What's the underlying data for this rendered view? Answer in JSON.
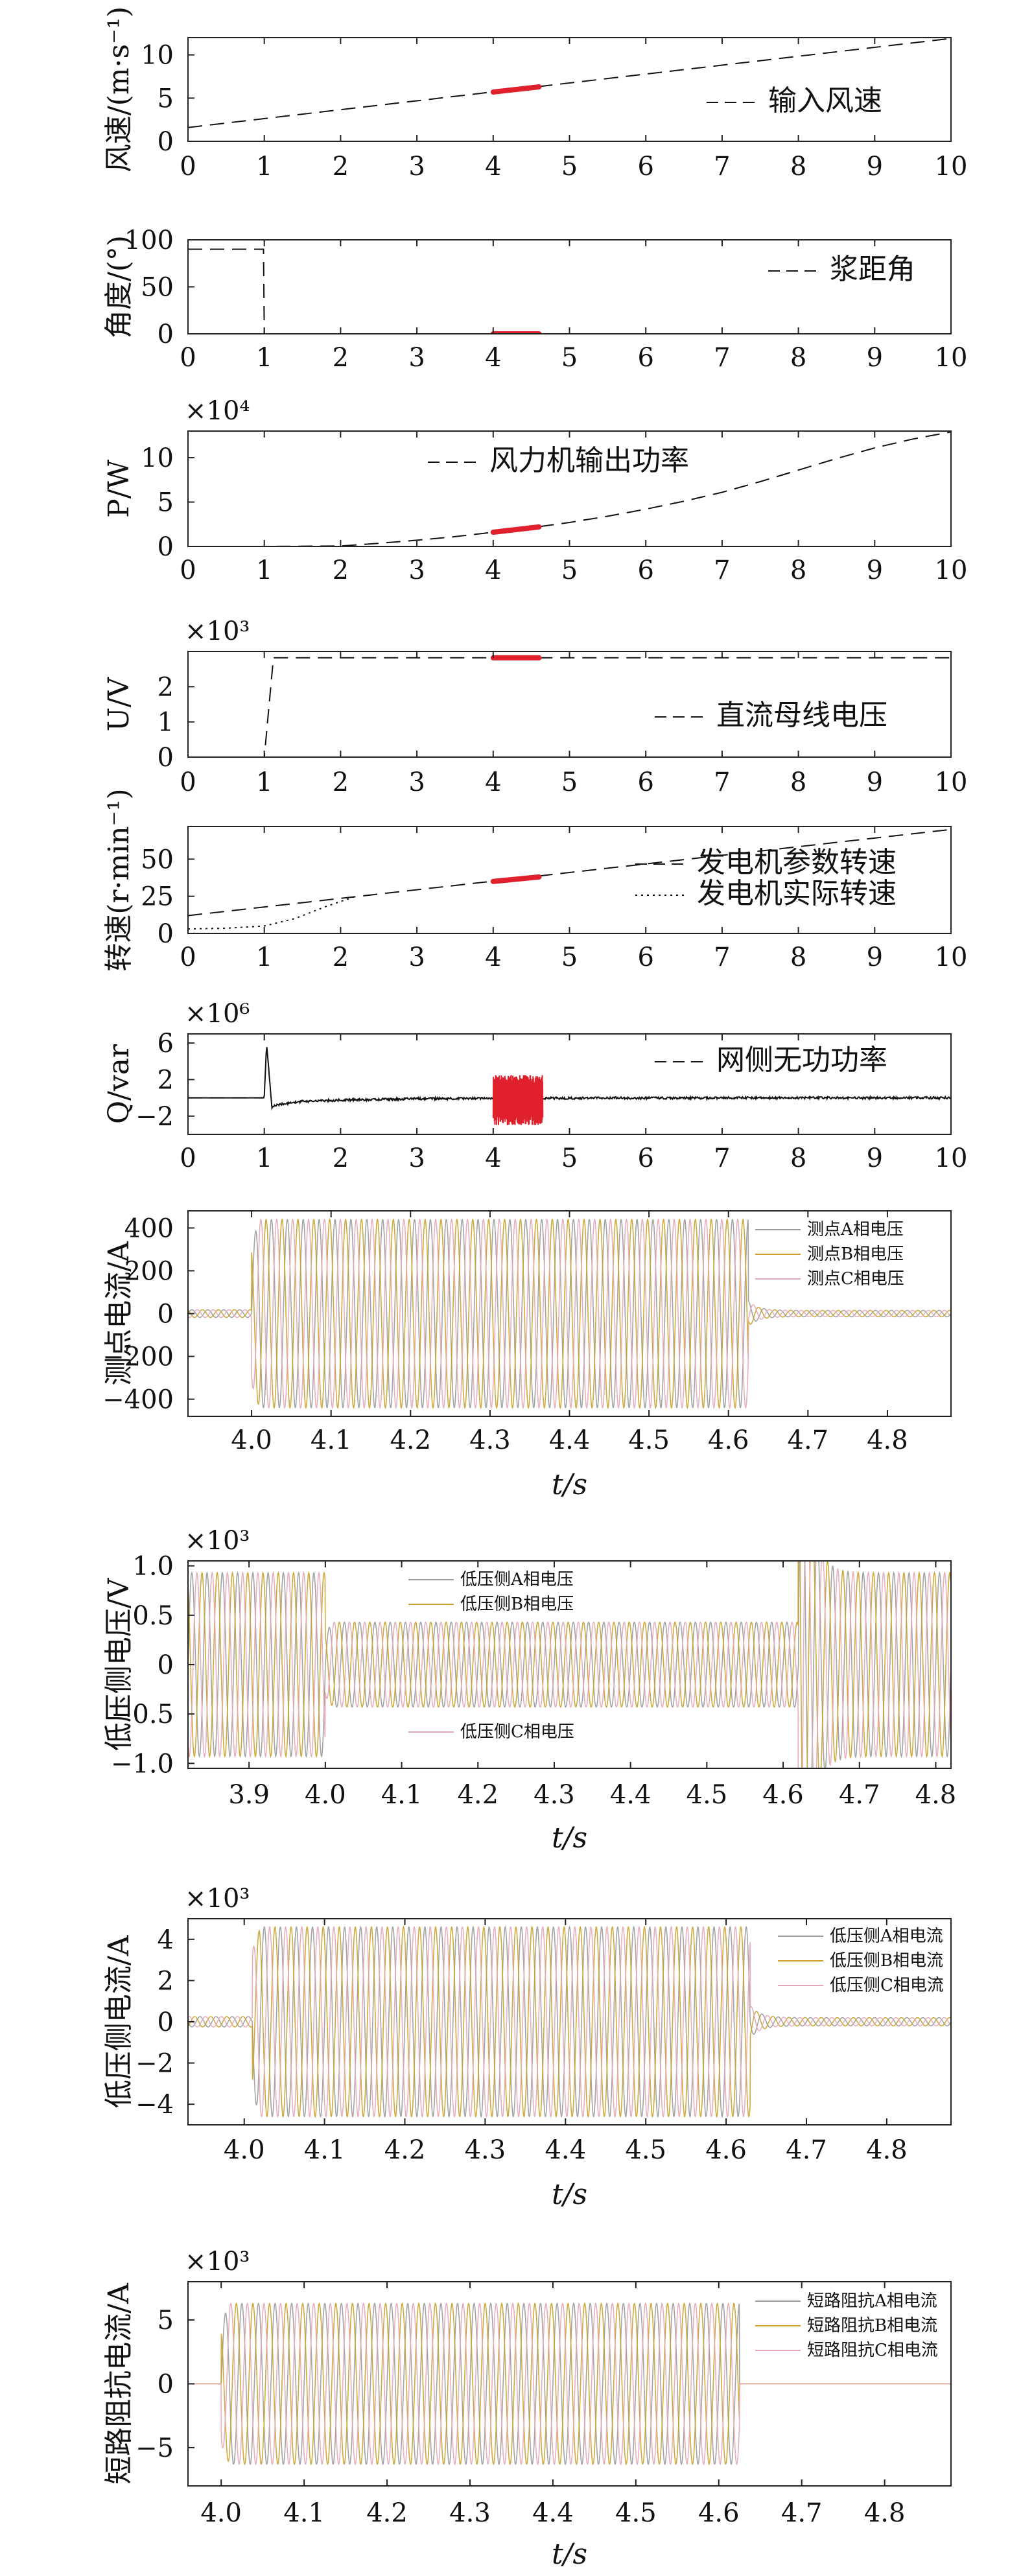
{
  "figure": {
    "background": "#ffffff",
    "accent_color": "#e0202c",
    "trace_colors": [
      "#9a9a9a",
      "#c9a227",
      "#e3a8b6",
      "#6fa3d8"
    ]
  },
  "chart_data": [
    {
      "type": "line",
      "ylabel": "风速/(m·s⁻¹)",
      "xlim": [
        0,
        10
      ],
      "ylim": [
        0,
        12
      ],
      "xticks": [
        "0",
        "1",
        "2",
        "3",
        "4",
        "5",
        "6",
        "7",
        "8",
        "9",
        "10"
      ],
      "yticks": [
        {
          "v": 0,
          "l": "0"
        },
        {
          "v": 5,
          "l": "5"
        },
        {
          "v": 10,
          "l": "10"
        }
      ],
      "legend_position": "bottom-right",
      "series": [
        {
          "name": "输入风速",
          "style": "dashed",
          "x": [
            0,
            10
          ],
          "y": [
            1.6,
            11.9
          ]
        }
      ],
      "highlight": {
        "x": [
          4,
          4.6
        ],
        "y": [
          5.7,
          6.3
        ],
        "color": "#e0202c"
      }
    },
    {
      "type": "line",
      "ylabel": "角度/(°)",
      "xlim": [
        0,
        10
      ],
      "ylim": [
        0,
        100
      ],
      "xticks": [
        "0",
        "1",
        "2",
        "3",
        "4",
        "5",
        "6",
        "7",
        "8",
        "9",
        "10"
      ],
      "yticks": [
        {
          "v": 0,
          "l": "0"
        },
        {
          "v": 50,
          "l": "50"
        },
        {
          "v": 100,
          "l": "100"
        }
      ],
      "legend_position": "top-right",
      "series": [
        {
          "name": "浆距角",
          "style": "dashed",
          "x": [
            0,
            0.99,
            1.0,
            10
          ],
          "y": [
            90,
            90,
            0,
            0
          ]
        }
      ],
      "highlight": {
        "x": [
          4,
          4.6
        ],
        "y": [
          0,
          0
        ],
        "color": "#e0202c"
      }
    },
    {
      "type": "line",
      "ylabel": "P/W",
      "multiplier": "×10⁴",
      "xlim": [
        0,
        10
      ],
      "ylim": [
        0,
        13
      ],
      "xticks": [
        "0",
        "1",
        "2",
        "3",
        "4",
        "5",
        "6",
        "7",
        "8",
        "9",
        "10"
      ],
      "yticks": [
        {
          "v": 0,
          "l": "0"
        },
        {
          "v": 5,
          "l": "5"
        },
        {
          "v": 10,
          "l": "10"
        }
      ],
      "legend_position": "top-center",
      "series": [
        {
          "name": "风力机输出功率",
          "style": "dashed",
          "x": [
            0,
            1,
            2,
            2.5,
            3,
            3.5,
            4,
            4.5,
            5,
            5.5,
            6,
            6.5,
            7,
            7.5,
            8,
            8.5,
            9,
            9.5,
            10
          ],
          "y": [
            0,
            0,
            0.05,
            0.35,
            0.7,
            1.1,
            1.6,
            2.1,
            2.7,
            3.4,
            4.2,
            5.1,
            6.1,
            7.3,
            8.6,
            9.9,
            11.1,
            12.1,
            12.9
          ]
        }
      ],
      "highlight": {
        "x": [
          4,
          4.6
        ],
        "y": [
          1.6,
          2.2
        ],
        "color": "#e0202c"
      }
    },
    {
      "type": "line",
      "ylabel": "U/V",
      "multiplier": "×10³",
      "xlim": [
        0,
        10
      ],
      "ylim": [
        0,
        3
      ],
      "xticks": [
        "0",
        "1",
        "2",
        "3",
        "4",
        "5",
        "6",
        "7",
        "8",
        "9",
        "10"
      ],
      "yticks": [
        {
          "v": 0,
          "l": "0"
        },
        {
          "v": 1,
          "l": "1"
        },
        {
          "v": 2,
          "l": "2"
        }
      ],
      "legend_position": "bottom-right",
      "series": [
        {
          "name": "直流母线电压",
          "style": "dashed",
          "x": [
            0,
            1.0,
            1.12,
            10
          ],
          "y": [
            0,
            0,
            2.82,
            2.82
          ]
        }
      ],
      "highlight": {
        "x": [
          4,
          4.6
        ],
        "y": [
          2.82,
          2.82
        ],
        "color": "#e0202c"
      }
    },
    {
      "type": "line",
      "ylabel": "转速(r·min⁻¹)",
      "xlim": [
        0,
        10
      ],
      "ylim": [
        0,
        72
      ],
      "xticks": [
        "0",
        "1",
        "2",
        "3",
        "4",
        "5",
        "6",
        "7",
        "8",
        "9",
        "10"
      ],
      "yticks": [
        {
          "v": 0,
          "l": "0"
        },
        {
          "v": 25,
          "l": "25"
        },
        {
          "v": 50,
          "l": "50"
        }
      ],
      "legend_position": "bottom-right",
      "series": [
        {
          "name": "发电机参数转速",
          "style": "dashed",
          "x": [
            0,
            10
          ],
          "y": [
            12,
            70
          ]
        },
        {
          "name": "发电机实际转速",
          "style": "dotted",
          "x": [
            0,
            0.5,
            1.0,
            1.4,
            1.8,
            2.2
          ],
          "y": [
            3,
            3.5,
            5,
            10,
            18,
            25
          ]
        }
      ],
      "highlight": {
        "x": [
          4,
          4.6
        ],
        "y": [
          35,
          38
        ],
        "color": "#e0202c"
      }
    },
    {
      "type": "line",
      "ylabel": "Q/var",
      "multiplier": "×10⁶",
      "xlim": [
        0,
        10
      ],
      "ylim": [
        -4,
        7
      ],
      "xticks": [
        "0",
        "1",
        "2",
        "3",
        "4",
        "5",
        "6",
        "7",
        "8",
        "9",
        "10"
      ],
      "yticks": [
        {
          "v": -2,
          "l": "−2"
        },
        {
          "v": 2,
          "l": "2"
        },
        {
          "v": 6,
          "l": "6"
        }
      ],
      "legend_position": "top-right",
      "series": [
        {
          "name": "网侧无功功率",
          "style": "solid",
          "x": [
            0,
            0.99,
            1.0,
            1.03,
            1.06,
            1.1,
            1.2,
            1.5,
            2,
            3,
            4,
            5,
            6,
            7,
            8,
            9,
            10
          ],
          "y": [
            0,
            0,
            0.2,
            6,
            3,
            -1,
            -0.7,
            -0.4,
            -0.25,
            -0.1,
            -0.05,
            -0.03,
            -0.02,
            -0.01,
            0,
            0,
            0
          ]
        },
        {
          "name": "",
          "style": "dashed",
          "x": [
            0,
            1
          ],
          "y": [
            0,
            0
          ]
        }
      ],
      "highlight": {
        "x": [
          4,
          4.65
        ],
        "y": [
          -3,
          2.5
        ],
        "color": "#e0202c"
      }
    },
    {
      "type": "line",
      "ylabel": "测点电流/A",
      "xlabel": "t/s",
      "xlim": [
        3.92,
        4.88
      ],
      "ylim": [
        -480,
        480
      ],
      "xticks": [
        "4.0",
        "4.1",
        "4.2",
        "4.3",
        "4.4",
        "4.5",
        "4.6",
        "4.7",
        "4.8"
      ],
      "xtick_values": [
        4.0,
        4.1,
        4.2,
        4.3,
        4.4,
        4.5,
        4.6,
        4.7,
        4.8
      ],
      "yticks": [
        {
          "v": -400,
          "l": "−400"
        },
        {
          "v": -200,
          "l": "−200"
        },
        {
          "v": 0,
          "l": "0"
        },
        {
          "v": 200,
          "l": "200"
        },
        {
          "v": 400,
          "l": "400"
        }
      ],
      "legend_position": "top-right",
      "series": [
        {
          "name": "测点A相电压"
        },
        {
          "name": "测点B相电压"
        },
        {
          "name": "测点C相电压"
        }
      ],
      "waveform": {
        "pre_amp": 18,
        "fault_start": 4.0,
        "fault_end": 4.625,
        "fault_amp": 440,
        "post_amp": 15,
        "freq": 50
      }
    },
    {
      "type": "line",
      "ylabel": "低压侧电压/V",
      "xlabel": "t/s",
      "multiplier": "×10³",
      "xlim": [
        3.82,
        4.82
      ],
      "ylim": [
        -1.05,
        1.05
      ],
      "xticks": [
        "3.9",
        "4.0",
        "4.1",
        "4.2",
        "4.3",
        "4.4",
        "4.5",
        "4.6",
        "4.7",
        "4.8"
      ],
      "xtick_values": [
        3.9,
        4.0,
        4.1,
        4.2,
        4.3,
        4.4,
        4.5,
        4.6,
        4.7,
        4.8
      ],
      "yticks": [
        {
          "v": -1,
          "l": "−1.0"
        },
        {
          "v": -0.5,
          "l": "−0.5"
        },
        {
          "v": 0,
          "l": "0"
        },
        {
          "v": 0.5,
          "l": "0.5"
        },
        {
          "v": 1,
          "l": "1.0"
        }
      ],
      "legend_position": "top-center",
      "series": [
        {
          "name": "低压侧A相电压"
        },
        {
          "name": "低压侧B相电压"
        },
        {
          "name": "低压侧C相电压"
        }
      ],
      "waveform": {
        "pre_amp": 0.93,
        "fault_start": 4.0,
        "fault_end": 4.62,
        "fault_amp": 0.43,
        "post_amp": 0.93,
        "freq": 50
      }
    },
    {
      "type": "line",
      "ylabel": "低压侧电流/A",
      "xlabel": "t/s",
      "multiplier": "×10³",
      "xlim": [
        3.93,
        4.88
      ],
      "ylim": [
        -5,
        5
      ],
      "xticks": [
        "4.0",
        "4.1",
        "4.2",
        "4.3",
        "4.4",
        "4.5",
        "4.6",
        "4.7",
        "4.8"
      ],
      "xtick_values": [
        4.0,
        4.1,
        4.2,
        4.3,
        4.4,
        4.5,
        4.6,
        4.7,
        4.8
      ],
      "yticks": [
        {
          "v": -4,
          "l": "−4"
        },
        {
          "v": -2,
          "l": "−2"
        },
        {
          "v": 0,
          "l": "0"
        },
        {
          "v": 2,
          "l": "2"
        },
        {
          "v": 4,
          "l": "4"
        }
      ],
      "legend_position": "top-right",
      "series": [
        {
          "name": "低压侧A相电流"
        },
        {
          "name": "低压侧B相电流"
        },
        {
          "name": "低压侧C相电流"
        }
      ],
      "waveform": {
        "pre_amp": 0.25,
        "fault_start": 4.01,
        "fault_end": 4.63,
        "fault_amp": 4.6,
        "post_amp": 0.2,
        "freq": 50
      }
    },
    {
      "type": "line",
      "ylabel": "短路阻抗电流/A",
      "xlabel": "t/s",
      "multiplier": "×10³",
      "xlim": [
        3.96,
        4.88
      ],
      "ylim": [
        -8,
        8
      ],
      "xticks": [
        "4.0",
        "4.1",
        "4.2",
        "4.3",
        "4.4",
        "4.5",
        "4.6",
        "4.7",
        "4.8"
      ],
      "xtick_values": [
        4.0,
        4.1,
        4.2,
        4.3,
        4.4,
        4.5,
        4.6,
        4.7,
        4.8
      ],
      "yticks": [
        {
          "v": -5,
          "l": "−5"
        },
        {
          "v": 0,
          "l": "0"
        },
        {
          "v": 5,
          "l": "5"
        }
      ],
      "legend_position": "top-right",
      "series": [
        {
          "name": "短路阻抗A相电流"
        },
        {
          "name": "短路阻抗B相电流"
        },
        {
          "name": "短路阻抗C相电流"
        }
      ],
      "waveform": {
        "pre_amp": 0,
        "fault_start": 4.0,
        "fault_end": 4.625,
        "fault_amp": 6.3,
        "post_amp": 0,
        "freq": 50
      }
    }
  ]
}
